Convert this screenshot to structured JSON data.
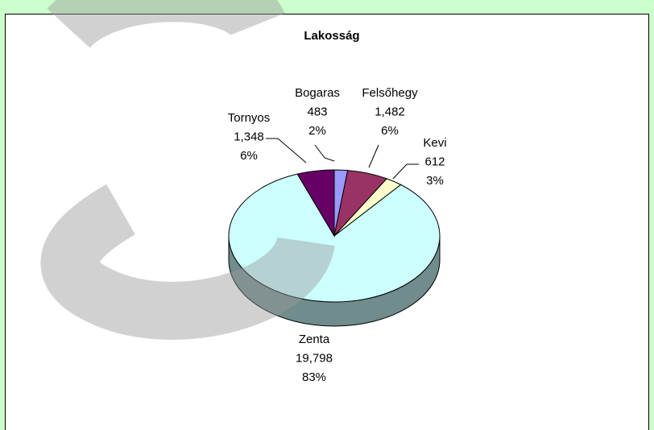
{
  "chart_data": {
    "type": "pie",
    "title": "Lakosság",
    "categories": [
      "Bogaras",
      "Felsőhegy",
      "Kevi",
      "Zenta",
      "Tornyos"
    ],
    "values": [
      483,
      1482,
      612,
      19798,
      1348
    ],
    "value_labels": [
      "483",
      "1,482",
      "612",
      "19,798",
      "1,348"
    ],
    "percents": [
      2,
      6,
      3,
      83,
      6
    ],
    "percent_labels": [
      "2%",
      "6%",
      "3%",
      "83%",
      "6%"
    ],
    "colors": [
      "#9999ff",
      "#993366",
      "#ffffcc",
      "#ccffff",
      "#660066"
    ]
  }
}
